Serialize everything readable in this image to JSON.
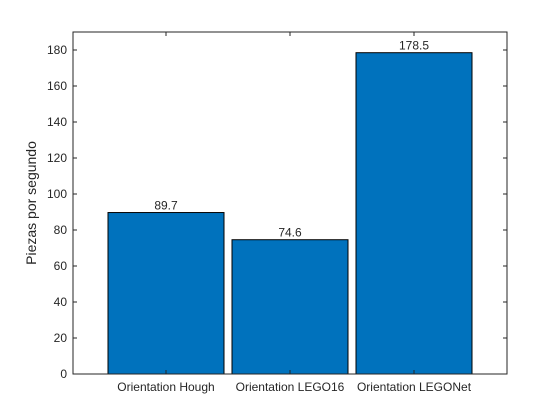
{
  "chart_data": {
    "type": "bar",
    "categories": [
      "Orientation Hough",
      "Orientation LEGO16",
      "Orientation LEGONet"
    ],
    "values": [
      89.7,
      74.6,
      178.5
    ],
    "value_labels": [
      "89.7",
      "74.6",
      "178.5"
    ],
    "title": "",
    "xlabel": "",
    "ylabel": "Piezas por segundo",
    "ylim": [
      0,
      190
    ],
    "yticks": [
      0,
      20,
      40,
      60,
      80,
      100,
      120,
      140,
      160,
      180
    ],
    "grid": false,
    "legend": "none",
    "bar_color": "#0072BD",
    "axis_color": "#262626"
  }
}
